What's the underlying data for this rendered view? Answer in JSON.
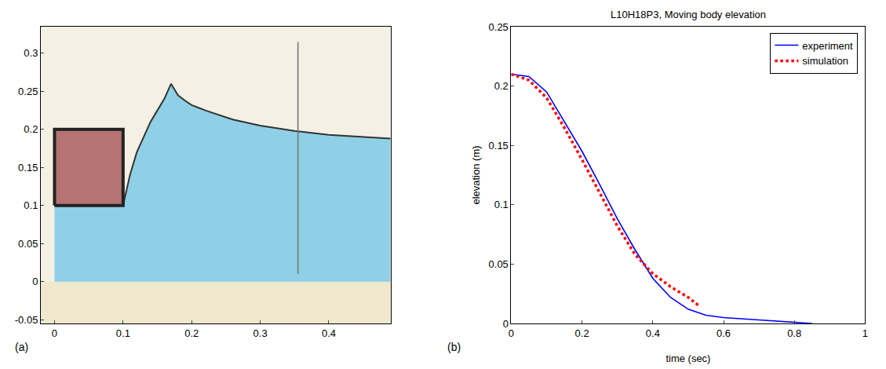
{
  "chart_data": [
    {
      "type": "area",
      "panel_label": "(a)",
      "xlim": [
        -0.02,
        0.49
      ],
      "xticks": [
        0,
        0.1,
        0.2,
        0.3,
        0.4
      ],
      "ylim": [
        -0.055,
        0.335
      ],
      "yticks": [
        -0.05,
        0,
        0.05,
        0.1,
        0.15,
        0.2,
        0.25,
        0.3
      ],
      "grid": false,
      "series": [
        {
          "type": "area",
          "color": "#efe8cc",
          "x": [
            -0.02,
            0.49
          ],
          "values": [
            -0.055,
            -0.055
          ]
        },
        {
          "type": "area",
          "color": "#8fd0e6",
          "x": [
            0,
            0.1,
            0.105,
            0.11,
            0.12,
            0.13,
            0.14,
            0.15,
            0.16,
            0.17,
            0.18,
            0.19,
            0.2,
            0.22,
            0.26,
            0.3,
            0.35,
            0.4,
            0.45,
            0.49
          ],
          "values": [
            0.1,
            0.1,
            0.12,
            0.14,
            0.17,
            0.19,
            0.21,
            0.225,
            0.24,
            0.26,
            0.245,
            0.238,
            0.232,
            0.225,
            0.213,
            0.205,
            0.198,
            0.193,
            0.19,
            0.188
          ]
        },
        {
          "type": "block",
          "color": "#b57373",
          "x": [
            0,
            0.1,
            0.1,
            0,
            0
          ],
          "values": [
            0.1,
            0.1,
            0.2,
            0.2,
            0.1
          ]
        },
        {
          "type": "line",
          "color": "#777777",
          "line_style": "solid",
          "x": [
            0.355,
            0.355
          ],
          "values": [
            0.01,
            0.315
          ]
        }
      ]
    },
    {
      "type": "line",
      "panel_label": "(b)",
      "title": "L10H18P3, Moving body elevation",
      "x_label": "time (sec)",
      "y_label": "elevation (m)",
      "xlim": [
        0,
        1
      ],
      "xticks": [
        0,
        0.2,
        0.4,
        0.6,
        0.8,
        1
      ],
      "ylim": [
        0,
        0.25
      ],
      "yticks": [
        0,
        0.05,
        0.1,
        0.15,
        0.2,
        0.25
      ],
      "grid": false,
      "legend": "upper right",
      "series": [
        {
          "name": "experiment",
          "color": "#0000ff",
          "line_style": "solid",
          "x": [
            0,
            0.05,
            0.1,
            0.15,
            0.2,
            0.25,
            0.3,
            0.35,
            0.4,
            0.45,
            0.5,
            0.55,
            0.6,
            0.7,
            0.8,
            0.85
          ],
          "values": [
            0.21,
            0.208,
            0.195,
            0.17,
            0.145,
            0.117,
            0.088,
            0.062,
            0.038,
            0.022,
            0.012,
            0.007,
            0.005,
            0.003,
            0.001,
            0
          ]
        },
        {
          "name": "simulation",
          "color": "#ff0000",
          "line_style": "dot",
          "x": [
            0,
            0.05,
            0.1,
            0.15,
            0.2,
            0.25,
            0.3,
            0.35,
            0.4,
            0.45,
            0.5,
            0.53
          ],
          "values": [
            0.21,
            0.205,
            0.19,
            0.165,
            0.138,
            0.11,
            0.082,
            0.058,
            0.042,
            0.031,
            0.022,
            0.015
          ]
        }
      ]
    }
  ]
}
